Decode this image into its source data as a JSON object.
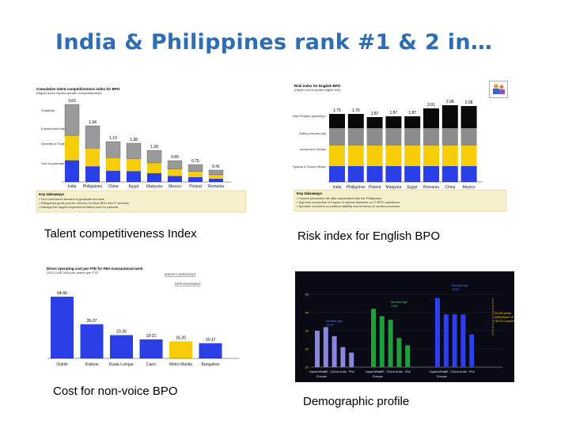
{
  "slide": {
    "title": "India & Philippines rank #1 & 2 in…",
    "captions": {
      "talent": "Talent competitiveness Index",
      "risk": "Risk index for English BPO",
      "cost": "Cost for non-voice BPO",
      "demographic": "Demographic profile"
    },
    "logo_icon": "people-logo-icon"
  },
  "chart_data": [
    {
      "type": "bar",
      "title": "Cumulative talent competitiveness index for BPO",
      "subtitle": "(Higher score implies greater competitiveness)",
      "categories": [
        "India",
        "Philippines",
        "China",
        "Egypt",
        "Malaysia",
        "Mexico",
        "Poland",
        "Romania"
      ],
      "stack_labels": [
        "Suitability",
        "Experienced talent pool",
        "Quantity of English trained talent",
        "Size of graduate pool"
      ],
      "totals": [
        "3.63",
        "1.34",
        "1.10",
        "1.38",
        "1.28",
        "0.85",
        "0.75",
        "0.41"
      ],
      "takeaways_title": "Key takeaways",
      "takeaways": [
        "Pool-cost talent demand in graduate tool sets",
        "Philippines great pool for delivery of voice BPO and IT services",
        "Manage the largest experienced talent pool for patients"
      ],
      "colors": {
        "top": "#9a9a9a",
        "mid": "#f8ce0b",
        "base": "#2a3fe6"
      }
    },
    {
      "type": "bar",
      "title": "Risk index for English BPO",
      "subtitle": "(Higher score implies higher risk)",
      "categories": [
        "India",
        "Philippines",
        "Poland",
        "Malaysia",
        "Egypt",
        "Romania",
        "China",
        "Mexico"
      ],
      "stack_labels": [
        "Skilled English speaking talent availability",
        "Safety and security",
        "Investment climate",
        "Physical & Social infrastructure"
      ],
      "totals": [
        "1.75",
        "1.76",
        "1.87",
        "1.87",
        "1.87",
        "2.01",
        "2.08",
        "2.08"
      ],
      "takeaways_title": "Key takeaways",
      "takeaways": [
        "Factors perceived risk often associated with the Philippines",
        "High-risk perception of impact of natural disasters on IT-BPO operations",
        "Sporadic concerns on political stability and terrorism in certain provinces"
      ],
      "colors": {
        "top": "#0a0a0a",
        "mid1": "#8c8c8c",
        "mid2": "#f8ce0b",
        "base": "#2a3fe6"
      }
    },
    {
      "type": "bar",
      "title": "Direct operating cost per FTE for FBA transactional work",
      "subtitle": "2010; US$ '000s per annum per FTE",
      "legend": [
        "MARKET AVERAGES",
        "REPLENISHABLE"
      ],
      "categories": [
        "Dublin",
        "Krakow",
        "Kuala Lumpur",
        "Cairo",
        "Metro Manila",
        "Bangalore"
      ],
      "value_labels": [
        "64-66",
        "35-37",
        "23-26",
        "19-21",
        "16-20",
        "15-17"
      ],
      "values": [
        65,
        36,
        24.5,
        20,
        18,
        16
      ],
      "ylim": [
        0,
        70
      ],
      "colors": {
        "bar": "#2a3fe6",
        "highlight": "#f8ce0b"
      }
    },
    {
      "type": "bar",
      "background": "#0a0a14",
      "groups": [
        "Japan/West Europe",
        "US",
        "China",
        "India",
        "Phil"
      ],
      "group_sets": [
        {
          "median_label": "Median Age 1975",
          "color": "#8a86e0",
          "values": [
            30,
            32,
            27,
            21,
            18
          ]
        },
        {
          "median_label": "Median Age 2000",
          "color": "#1e9e3c",
          "values": [
            42,
            38,
            36,
            26,
            22
          ]
        },
        {
          "median_label": "Median Age 2020",
          "color": "#2a3ff0",
          "values": [
            48,
            39,
            39,
            39,
            28
          ]
        }
      ],
      "ylim": [
        10,
        50
      ],
      "yticks": [
        "10",
        "20",
        "30",
        "40",
        "50"
      ],
      "annotation": [
        "25-40 years",
        "(Workforce of",
        "OECD countries)"
      ]
    }
  ]
}
